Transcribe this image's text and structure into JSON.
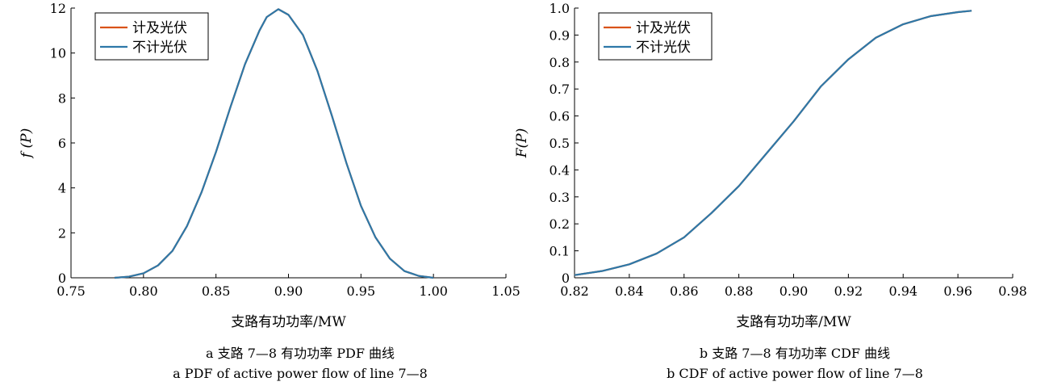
{
  "chart_data": [
    {
      "id": "a",
      "type": "line",
      "xlabel": "支路有功功率/MW",
      "ylabel": "f (P)",
      "xlim": [
        0.75,
        1.05
      ],
      "ylim": [
        0,
        12
      ],
      "xticks": [
        0.75,
        0.8,
        0.85,
        0.9,
        0.95,
        1.0,
        1.05
      ],
      "xtick_labels": [
        "0.75",
        "0.80",
        "0.85",
        "0.90",
        "0.95",
        "1.00",
        "1.05"
      ],
      "yticks": [
        0,
        2,
        4,
        6,
        8,
        10,
        12
      ],
      "ytick_labels": [
        "0",
        "2",
        "4",
        "6",
        "8",
        "10",
        "12"
      ],
      "grid": false,
      "legend_position": "top-left",
      "caption_cn": "a 支路 7—8 有功功率 PDF 曲线",
      "caption_en": "a PDF of active power flow of line 7—8",
      "series": [
        {
          "name": "计及光伏",
          "color": "#d95319",
          "x": [
            0.78,
            0.79,
            0.8,
            0.81,
            0.82,
            0.83,
            0.84,
            0.85,
            0.86,
            0.87,
            0.88,
            0.885,
            0.893,
            0.9,
            0.91,
            0.92,
            0.93,
            0.94,
            0.95,
            0.96,
            0.97,
            0.98,
            0.99,
            1.0
          ],
          "y": [
            0.0,
            0.05,
            0.2,
            0.55,
            1.2,
            2.3,
            3.8,
            5.6,
            7.6,
            9.5,
            11.0,
            11.6,
            11.95,
            11.7,
            10.8,
            9.2,
            7.2,
            5.1,
            3.2,
            1.8,
            0.85,
            0.3,
            0.08,
            0.0
          ]
        },
        {
          "name": "不计光伏",
          "color": "#2e78a8",
          "x": [
            0.78,
            0.79,
            0.8,
            0.81,
            0.82,
            0.83,
            0.84,
            0.85,
            0.86,
            0.87,
            0.88,
            0.885,
            0.893,
            0.9,
            0.91,
            0.92,
            0.93,
            0.94,
            0.95,
            0.96,
            0.97,
            0.98,
            0.99,
            1.0
          ],
          "y": [
            0.0,
            0.05,
            0.2,
            0.55,
            1.2,
            2.3,
            3.8,
            5.6,
            7.6,
            9.5,
            11.0,
            11.6,
            11.95,
            11.7,
            10.8,
            9.2,
            7.2,
            5.1,
            3.2,
            1.8,
            0.85,
            0.3,
            0.08,
            0.0
          ]
        }
      ]
    },
    {
      "id": "b",
      "type": "line",
      "xlabel": "支路有功功率/MW",
      "ylabel": "F(P)",
      "xlim": [
        0.82,
        0.98
      ],
      "ylim": [
        0,
        1.0
      ],
      "xticks": [
        0.82,
        0.84,
        0.86,
        0.88,
        0.9,
        0.92,
        0.94,
        0.96,
        0.98
      ],
      "xtick_labels": [
        "0.82",
        "0.84",
        "0.86",
        "0.88",
        "0.90",
        "0.92",
        "0.94",
        "0.96",
        "0.98"
      ],
      "yticks": [
        0,
        0.1,
        0.2,
        0.3,
        0.4,
        0.5,
        0.6,
        0.7,
        0.8,
        0.9,
        1.0
      ],
      "ytick_labels": [
        "0",
        "0.1",
        "0.2",
        "0.3",
        "0.4",
        "0.5",
        "0.6",
        "0.7",
        "0.8",
        "0.9",
        "1.0"
      ],
      "grid": false,
      "legend_position": "top-left",
      "caption_cn": "b 支路 7—8 有功功率 CDF 曲线",
      "caption_en": "b CDF of active power flow of line 7—8",
      "series": [
        {
          "name": "计及光伏",
          "color": "#d95319",
          "x": [
            0.82,
            0.83,
            0.84,
            0.85,
            0.86,
            0.87,
            0.88,
            0.89,
            0.9,
            0.91,
            0.92,
            0.93,
            0.94,
            0.95,
            0.96,
            0.965
          ],
          "y": [
            0.01,
            0.025,
            0.05,
            0.09,
            0.15,
            0.24,
            0.34,
            0.46,
            0.58,
            0.71,
            0.81,
            0.89,
            0.94,
            0.97,
            0.985,
            0.99
          ]
        },
        {
          "name": "不计光伏",
          "color": "#2e78a8",
          "x": [
            0.82,
            0.83,
            0.84,
            0.85,
            0.86,
            0.87,
            0.88,
            0.89,
            0.9,
            0.91,
            0.92,
            0.93,
            0.94,
            0.95,
            0.96,
            0.965
          ],
          "y": [
            0.01,
            0.025,
            0.05,
            0.09,
            0.15,
            0.24,
            0.34,
            0.46,
            0.58,
            0.71,
            0.81,
            0.89,
            0.94,
            0.97,
            0.985,
            0.99
          ]
        }
      ]
    }
  ]
}
